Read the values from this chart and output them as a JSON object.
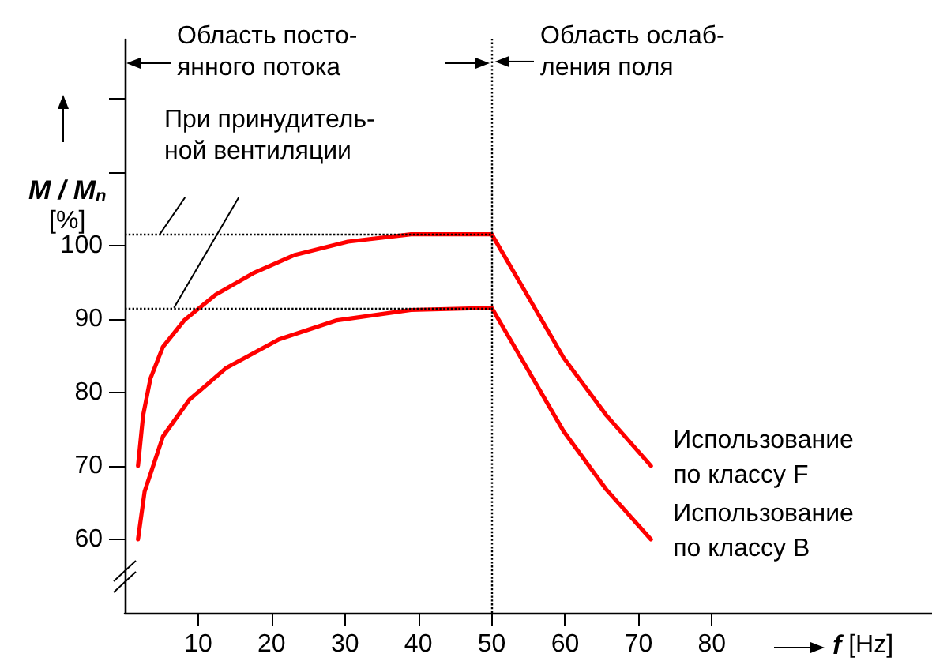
{
  "chart_data": {
    "type": "line",
    "xlabel": "f [Hz]",
    "ylabel": "M / M$_{n}$ [%]",
    "xlim": [
      0,
      110
    ],
    "ylim": [
      50,
      128
    ],
    "xticks": [
      10,
      20,
      30,
      40,
      50,
      60,
      70,
      80
    ],
    "yticks": [
      60,
      70,
      80,
      90,
      100,
      {
        "value": 110,
        "label": null
      },
      {
        "value": 120,
        "label": null
      }
    ],
    "series": [
      {
        "name": "Использование по классу F",
        "color": "#ff0000",
        "x": [
          1.8,
          2.5,
          3.5,
          5.2,
          8.1,
          12.4,
          17.5,
          23.2,
          30.4,
          39,
          50,
          54.8,
          59.8,
          65.6,
          71.7
        ],
        "values": [
          70,
          76.9,
          81.9,
          86.2,
          89.8,
          93.3,
          96.2,
          98.7,
          100.5,
          101.5,
          101.5,
          93.3,
          84.7,
          76.9,
          70
        ]
      },
      {
        "name": "Использование по классу B",
        "color": "#ff0000",
        "x": [
          1.8,
          2.7,
          5.2,
          8.8,
          13.8,
          21,
          28.9,
          39,
          50,
          54.8,
          59.8,
          65.6,
          71.7
        ],
        "values": [
          60,
          66.5,
          74,
          79,
          83.3,
          87.2,
          89.8,
          91.2,
          91.5,
          83.3,
          74.7,
          66.8,
          60
        ]
      }
    ],
    "ref_lines": [
      {
        "axis": "x",
        "value": 50,
        "line_style": "dotted"
      },
      {
        "axis": "y",
        "value": 101.5,
        "line_style": "dotted"
      },
      {
        "axis": "y",
        "value": 91.5,
        "line_style": "dotted"
      }
    ],
    "annotations": [
      "Область посто-\nянного потока",
      {
        "text": "Область ослаб-\nления поля",
        "x": 50,
        "y": 125
      },
      {
        "text": "При принудитель-\nной вентиляции",
        "x": 6.7,
        "y": 91.5
      }
    ],
    "grid": false,
    "legend": false,
    "marker": "none",
    "line_style": "solid"
  }
}
